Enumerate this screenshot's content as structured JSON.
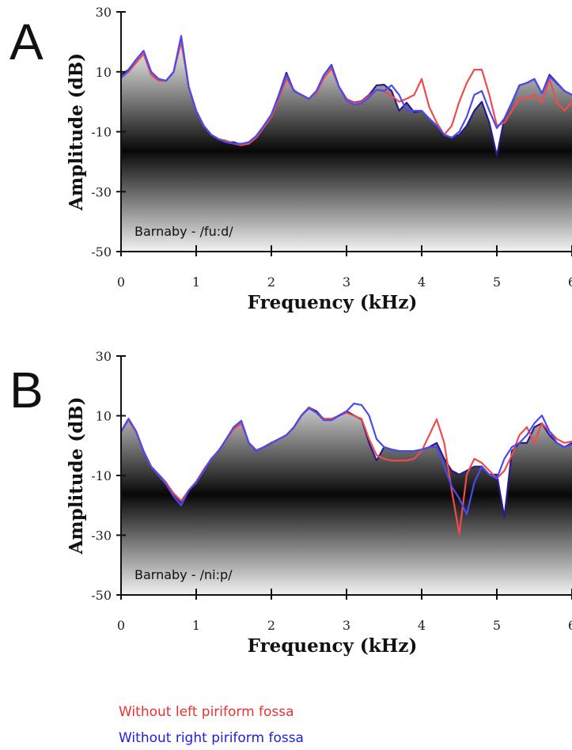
{
  "chart_data": [
    {
      "type": "line",
      "panel_label": "A",
      "annotation": "Barnaby - /fu:d/",
      "xlabel": "Frequency (kHz)",
      "ylabel": "Amplitude (dB)",
      "xlim": [
        0,
        6
      ],
      "ylim": [
        -50,
        30
      ],
      "xticks": [
        0,
        1,
        2,
        3,
        4,
        5,
        6
      ],
      "yticks": [
        30,
        10,
        -10,
        -30,
        -50
      ],
      "x": [
        0,
        0.1,
        0.2,
        0.3,
        0.4,
        0.5,
        0.6,
        0.7,
        0.8,
        0.9,
        1,
        1.1,
        1.2,
        1.3,
        1.4,
        1.5,
        1.6,
        1.7,
        1.8,
        1.9,
        2,
        2.1,
        2.2,
        2.3,
        2.4,
        2.5,
        2.6,
        2.7,
        2.8,
        2.9,
        3,
        3.1,
        3.2,
        3.3,
        3.4,
        3.5,
        3.6,
        3.7,
        3.8,
        3.9,
        4,
        4.1,
        4.2,
        4.3,
        4.4,
        4.5,
        4.6,
        4.7,
        4.8,
        4.9,
        5,
        5.1,
        5.2,
        5.3,
        5.4,
        5.5,
        5.6,
        5.7,
        5.8,
        5.9,
        6
      ],
      "series": [
        {
          "color": "#2a1a8a",
          "filled": true,
          "values": [
            9,
            10.7,
            14,
            17,
            10,
            7.6,
            7,
            10,
            21,
            5,
            -3,
            -8,
            -11,
            -12.5,
            -13.5,
            -13.5,
            -14.3,
            -13.5,
            -11.4,
            -8,
            -4.3,
            2.3,
            9.7,
            3.6,
            2.3,
            1,
            3.6,
            9,
            12.3,
            5,
            1,
            -0.3,
            0.2,
            2.3,
            5.5,
            5.7,
            3.6,
            -3,
            -0.3,
            -3.5,
            -3,
            -5.6,
            -8,
            -11,
            -12,
            -11,
            -8,
            -3,
            0,
            -7,
            -18,
            -5.6,
            -0.3,
            5.5,
            6.3,
            7.6,
            2.8,
            9,
            6.3,
            3.6,
            2.3
          ]
        },
        {
          "name": "Without left piriform fossa",
          "color": "#f04a4a",
          "values": [
            8,
            10,
            13,
            16,
            9,
            7,
            7,
            10,
            20,
            5,
            -3,
            -8,
            -11,
            -12.5,
            -13,
            -14,
            -14.5,
            -14,
            -12,
            -8.5,
            -5,
            1,
            7.6,
            4,
            2,
            1,
            3,
            8,
            11,
            5,
            1,
            -0.5,
            0,
            2,
            4,
            3.5,
            2,
            0,
            1,
            2.3,
            7.6,
            -1.7,
            -7,
            -11,
            -8,
            0,
            6.3,
            10.7,
            10.7,
            2.3,
            -8,
            -7,
            -3,
            1,
            1,
            2.3,
            -0.3,
            7.6,
            -0.3,
            -3,
            0
          ]
        },
        {
          "name": "Without right piriform fossa",
          "color": "#4a4af0",
          "values": [
            8,
            10.5,
            14,
            17,
            10,
            7.6,
            7,
            10,
            22,
            5,
            -3,
            -8,
            -11,
            -12.5,
            -13.5,
            -14,
            -14,
            -13.5,
            -11.4,
            -8,
            -4.3,
            2,
            9,
            3.6,
            2.3,
            1,
            3.6,
            9,
            12,
            5,
            0.5,
            -1,
            -0.5,
            1.5,
            4,
            3.6,
            5.5,
            2.3,
            -3,
            -3,
            -3,
            -5.6,
            -8,
            -11,
            -12,
            -10,
            -5,
            2.3,
            3.6,
            -3,
            -8.8,
            -5.6,
            -0.3,
            5.5,
            6.3,
            7.6,
            2.8,
            8.5,
            6,
            3.6,
            2.3
          ]
        }
      ]
    },
    {
      "type": "line",
      "panel_label": "B",
      "annotation": "Barnaby - /ni:p/",
      "xlabel": "Frequency (kHz)",
      "ylabel": "Amplitude (dB)",
      "xlim": [
        0,
        6
      ],
      "ylim": [
        -50,
        30
      ],
      "xticks": [
        0,
        1,
        2,
        3,
        4,
        5,
        6
      ],
      "yticks": [
        30,
        10,
        -10,
        -30,
        -50
      ],
      "x": [
        0,
        0.1,
        0.2,
        0.3,
        0.4,
        0.5,
        0.6,
        0.7,
        0.8,
        0.9,
        1,
        1.1,
        1.2,
        1.3,
        1.4,
        1.5,
        1.6,
        1.7,
        1.8,
        1.9,
        2,
        2.1,
        2.2,
        2.3,
        2.4,
        2.5,
        2.6,
        2.7,
        2.8,
        2.9,
        3,
        3.1,
        3.2,
        3.3,
        3.4,
        3.5,
        3.6,
        3.7,
        3.8,
        3.9,
        4,
        4.1,
        4.2,
        4.3,
        4.4,
        4.5,
        4.6,
        4.7,
        4.8,
        4.9,
        5,
        5.1,
        5.2,
        5.3,
        5.4,
        5.5,
        5.6,
        5.7,
        5.8,
        5.9,
        6
      ],
      "series": [
        {
          "color": "#2a1a8a",
          "filled": true,
          "values": [
            4.8,
            9,
            4.8,
            -1.8,
            -7,
            -9.7,
            -12.4,
            -16.4,
            -19,
            -15,
            -12.4,
            -8.4,
            -4.4,
            -1.8,
            2.2,
            6.2,
            8.3,
            0.9,
            -1.8,
            -0.5,
            0.9,
            2.2,
            3.5,
            6.2,
            10.1,
            12.8,
            11.5,
            8.8,
            8.8,
            10.1,
            11.5,
            10.1,
            8.8,
            0.9,
            -5,
            -0.5,
            -1.3,
            -1.8,
            -1.8,
            -1.8,
            -1.3,
            -0.5,
            0.9,
            -4.4,
            -8.4,
            -9.7,
            -8.4,
            -7,
            -7,
            -9.7,
            -9.7,
            -24,
            -1.8,
            0.9,
            0.9,
            6.2,
            7.5,
            3.5,
            0.9,
            -0.5,
            0.9
          ]
        },
        {
          "color": "#f04a4a",
          "values": [
            5,
            8.5,
            4.5,
            -2,
            -7,
            -10,
            -12.5,
            -16,
            -18.5,
            -15,
            -12,
            -8,
            -4.5,
            -1.5,
            2,
            5.5,
            7.5,
            1,
            -1.5,
            -0.5,
            1,
            2,
            3.5,
            6,
            10,
            12.8,
            11,
            9,
            9,
            10,
            11,
            10,
            9,
            2.2,
            -3.2,
            -4.4,
            -5,
            -5,
            -5,
            -4.4,
            -1.8,
            3.5,
            8.8,
            0.9,
            -15,
            -29.6,
            -9.7,
            -4.4,
            -5.8,
            -8.4,
            -11,
            -8.4,
            -3.2,
            3.5,
            6.2,
            0.9,
            7.5,
            4.8,
            2.2,
            0.9,
            1.4
          ]
        },
        {
          "color": "#4a4af0",
          "values": [
            4.5,
            9,
            4.8,
            -2,
            -7,
            -10,
            -13,
            -17,
            -20,
            -15,
            -12.4,
            -8.4,
            -4.4,
            -1.8,
            2.2,
            6.2,
            8.3,
            0.9,
            -1.8,
            -0.5,
            0.9,
            2.2,
            3.5,
            6.2,
            10.1,
            12.5,
            11,
            8.5,
            8.5,
            10,
            11.5,
            14.1,
            13.6,
            10.1,
            2.2,
            -0.5,
            -1.3,
            -1.8,
            -1.8,
            -1.8,
            -1.3,
            -0.5,
            -0.5,
            -7,
            -13.7,
            -17.7,
            -23,
            -12.4,
            -7,
            -9.7,
            -11,
            -4.4,
            -0.5,
            0.9,
            3.5,
            7.5,
            10.1,
            4.8,
            0.9,
            -0.5,
            0.4
          ]
        }
      ]
    }
  ]
}
